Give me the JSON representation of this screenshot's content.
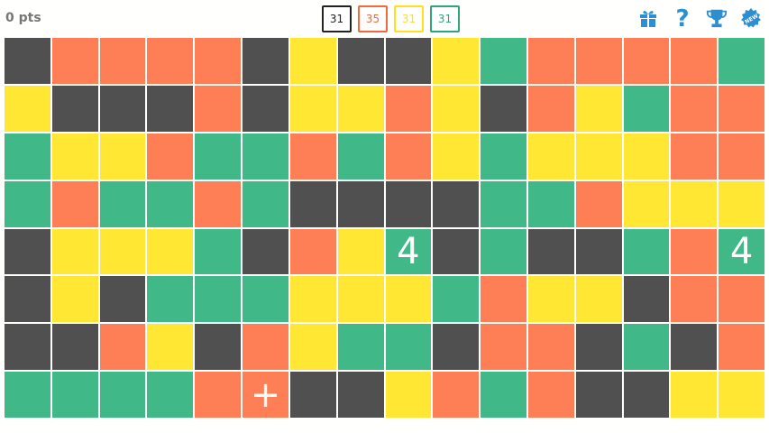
{
  "score": {
    "label": "0 pts"
  },
  "counts": [
    {
      "value": "31",
      "color": "#222222"
    },
    {
      "value": "35",
      "color": "#f26a3c"
    },
    {
      "value": "31",
      "color": "#ffe020"
    },
    {
      "value": "31",
      "color": "#2ea678"
    }
  ],
  "icons": [
    "gift-icon",
    "help-icon",
    "trophy-icon",
    "new-badge-icon"
  ],
  "icon_color": "#2e8fd0",
  "colors": {
    "D": "#505050",
    "O": "#fe7f55",
    "Y": "#ffe733",
    "G": "#40b887"
  },
  "grid": [
    [
      "D",
      "O",
      "O",
      "O",
      "O",
      "D",
      "Y",
      "D",
      "D",
      "Y",
      "G",
      "O",
      "O",
      "O",
      "O",
      "G"
    ],
    [
      "Y",
      "D",
      "D",
      "D",
      "O",
      "D",
      "Y",
      "Y",
      "O",
      "Y",
      "D",
      "O",
      "Y",
      "G",
      "O",
      "O"
    ],
    [
      "G",
      "Y",
      "Y",
      "O",
      "G",
      "G",
      "O",
      "G",
      "O",
      "Y",
      "G",
      "Y",
      "Y",
      "Y",
      "O",
      "O"
    ],
    [
      "G",
      "O",
      "G",
      "G",
      "O",
      "G",
      "D",
      "D",
      "D",
      "D",
      "G",
      "G",
      "O",
      "Y",
      "Y",
      "Y"
    ],
    [
      "D",
      "Y",
      "Y",
      "Y",
      "G",
      "D",
      "O",
      "Y",
      "G",
      "D",
      "G",
      "D",
      "D",
      "G",
      "O",
      "G"
    ],
    [
      "D",
      "Y",
      "D",
      "G",
      "G",
      "G",
      "Y",
      "Y",
      "Y",
      "G",
      "O",
      "Y",
      "Y",
      "D",
      "O",
      "O"
    ],
    [
      "D",
      "D",
      "O",
      "Y",
      "D",
      "O",
      "Y",
      "G",
      "G",
      "D",
      "O",
      "O",
      "D",
      "G",
      "D",
      "O"
    ],
    [
      "G",
      "G",
      "G",
      "G",
      "O",
      "O",
      "D",
      "D",
      "Y",
      "O",
      "G",
      "O",
      "D",
      "D",
      "Y",
      "Y"
    ]
  ],
  "cell_labels": [
    {
      "row": 4,
      "col": 8,
      "text": "4"
    },
    {
      "row": 4,
      "col": 15,
      "text": "4"
    },
    {
      "row": 7,
      "col": 5,
      "text": "+"
    }
  ]
}
